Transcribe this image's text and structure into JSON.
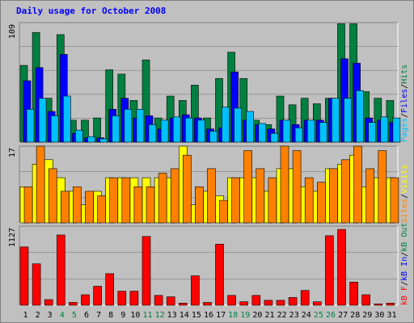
{
  "chart_data": {
    "type": "bar",
    "title": "Daily usage for October 2008",
    "categories": [
      "1",
      "2",
      "3",
      "4",
      "5",
      "6",
      "7",
      "8",
      "9",
      "10",
      "11",
      "12",
      "13",
      "14",
      "15",
      "16",
      "17",
      "18",
      "19",
      "20",
      "21",
      "22",
      "23",
      "24",
      "25",
      "26",
      "27",
      "28",
      "29",
      "30",
      "31"
    ],
    "weekend_days": [
      "4",
      "5",
      "11",
      "12",
      "18",
      "19",
      "25",
      "26"
    ],
    "panels": [
      {
        "id": "top",
        "ymax_label": "109",
        "ymax": 109,
        "legend": [
          "Pages",
          "/",
          "Files",
          "/",
          "Hits"
        ],
        "series": [
          {
            "name": "Hits",
            "color": "#008040",
            "values": [
              70,
              100,
              40,
              98,
              20,
              20,
              22,
              66,
              62,
              38,
              75,
              22,
              42,
              38,
              52,
              22,
              58,
              82,
              58,
              20,
              16,
              42,
              34,
              40,
              35,
              40,
              108,
              108,
              46,
              40,
              38
            ]
          },
          {
            "name": "Files",
            "color": "#0000ff",
            "values": [
              56,
              68,
              28,
              80,
              8,
              4,
              4,
              30,
              40,
              22,
              24,
              12,
              22,
              25,
              22,
              12,
              13,
              64,
              20,
              16,
              12,
              20,
              16,
              20,
              20,
              40,
              76,
              72,
              22,
              20,
              18
            ]
          },
          {
            "name": "Pages",
            "color": "#00c0ff",
            "values": [
              30,
              40,
              24,
              42,
              11,
              5,
              3,
              24,
              30,
              30,
              16,
              20,
              23,
              22,
              20,
              10,
              32,
              31,
              28,
              17,
              8,
              20,
              13,
              20,
              18,
              40,
              40,
              47,
              18,
              23,
              22
            ]
          }
        ]
      },
      {
        "id": "middle",
        "ymax_label": "17",
        "ymax": 17,
        "legend": [
          "Sites",
          "/",
          "Visits"
        ],
        "series": [
          {
            "name": "Visits",
            "color": "#ffff00",
            "values": [
              8,
              13,
              14,
              10,
              7,
              4,
              7,
              10,
              10,
              10,
              10,
              10,
              10,
              17,
              4,
              7,
              6,
              10,
              10,
              10,
              7,
              12,
              12,
              8,
              7,
              12,
              13,
              15,
              8,
              10,
              10
            ]
          },
          {
            "name": "Sites",
            "color": "#ff8000",
            "values": [
              8,
              17,
              12,
              7,
              8,
              7,
              6,
              10,
              10,
              8,
              8,
              11,
              12,
              15,
              8,
              12,
              5,
              10,
              16,
              12,
              10,
              17,
              16,
              10,
              9,
              12,
              14,
              17,
              12,
              16,
              10
            ]
          }
        ]
      },
      {
        "id": "bottom",
        "ymax_label": "1127",
        "ymax": 1127,
        "legend": [
          "kB F",
          "/",
          "kB In",
          "/",
          "kB Out"
        ],
        "series": [
          {
            "name": "kB F",
            "color": "#ff0000",
            "values": [
              830,
              590,
              80,
              1000,
              40,
              150,
              270,
              450,
              200,
              200,
              980,
              140,
              120,
              30,
              420,
              40,
              870,
              140,
              50,
              140,
              70,
              70,
              110,
              210,
              50,
              990,
              1080,
              330,
              150,
              20,
              30
            ]
          }
        ]
      }
    ]
  },
  "colors": {
    "title": "#0000ff",
    "weekday_label": "#000000",
    "weekend_label": "#008040",
    "plot_bg": "#c0c0c0",
    "frame": "#808080"
  }
}
